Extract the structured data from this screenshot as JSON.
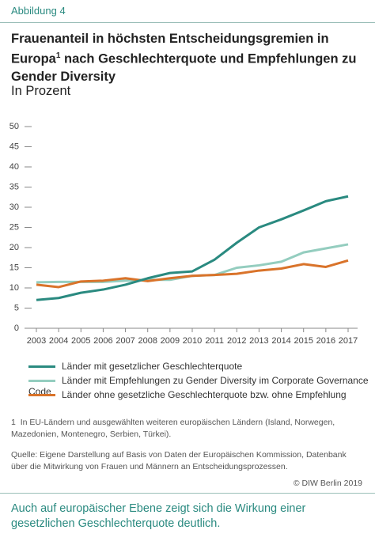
{
  "label": "Abbildung 4",
  "chart_data": {
    "type": "line",
    "title_start": "Frauenanteil in höchsten Entscheidungsgremien in Europa",
    "title_note": "1",
    "title_end": "nach Geschlechterquote und Empfehlungen zu Gender Diversity",
    "subtitle": "In Prozent",
    "categories": [
      "2003",
      "2004",
      "2005",
      "2006",
      "2007",
      "2008",
      "2009",
      "2010",
      "2011",
      "2012",
      "2013",
      "2014",
      "2015",
      "2016",
      "2017"
    ],
    "series": [
      {
        "name": "Länder mit gesetzlicher Geschlechterquote",
        "color": "#2a8a80",
        "values": [
          7,
          7.5,
          8.8,
          9.6,
          10.8,
          12.4,
          13.7,
          14.1,
          17,
          21.2,
          25,
          27,
          29.2,
          31.5,
          32.7
        ]
      },
      {
        "name": "Länder mit Empfehlungen zu Gender Diversity im Corporate Governance Code",
        "color": "#94cdbf",
        "values": [
          11.4,
          11.5,
          11.5,
          11.5,
          11.8,
          12,
          12,
          13,
          13.2,
          15,
          15.6,
          16.5,
          18.8,
          19.8,
          20.8
        ]
      },
      {
        "name": "Länder ohne gesetzliche Geschlechterquote bzw. ohne Empfehlung",
        "color": "#d9732a",
        "values": [
          10.8,
          10.2,
          11.6,
          11.8,
          12.4,
          11.7,
          12.4,
          13,
          13.2,
          13.5,
          14.3,
          14.8,
          15.9,
          15.2,
          16.8
        ]
      }
    ],
    "ylim": [
      0,
      50
    ],
    "yticks": [
      0,
      5,
      10,
      15,
      20,
      25,
      30,
      35,
      40,
      45,
      50
    ]
  },
  "footnote": {
    "marker": "1",
    "text": "In EU-Ländern und ausgewählten weiteren europäischen Ländern (Island, Norwegen, Mazedonien, Montenegro, Serbien, Türkei)."
  },
  "source": "Quelle: Eigene Darstellung auf Basis von Daten der Europäischen Kommission, Datenbank über die Mitwirkung von Frauen und Männern an Entscheidungsprozessen.",
  "copyright": "© DIW Berlin 2019",
  "conclusion": "Auch auf europäischer Ebene zeigt sich die Wirkung einer gesetzlichen Geschlechterquote deutlich."
}
